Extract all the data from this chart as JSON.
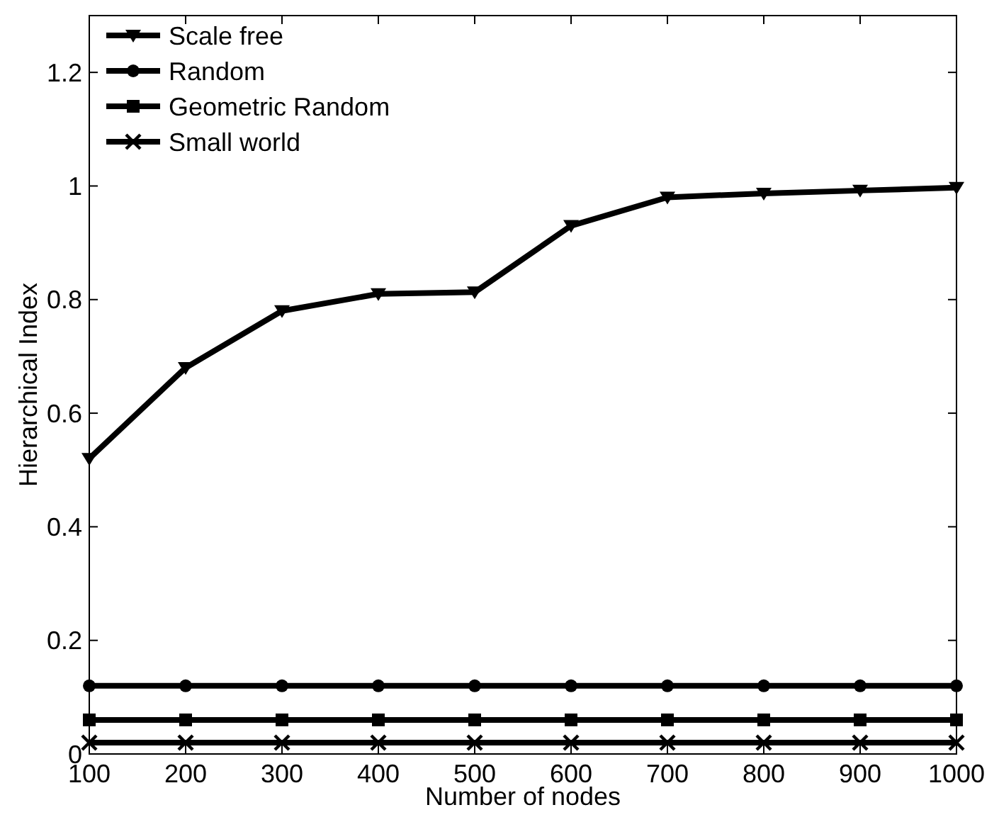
{
  "chart_data": {
    "type": "line",
    "xlabel": "Number of nodes",
    "ylabel": "Hierarchical Index",
    "x": [
      100,
      200,
      300,
      400,
      500,
      600,
      700,
      800,
      900,
      1000
    ],
    "xlim": [
      100,
      1000
    ],
    "xticks": [
      100,
      200,
      300,
      400,
      500,
      600,
      700,
      800,
      900,
      1000
    ],
    "ylim": [
      0,
      1.3
    ],
    "yticks": [
      0,
      0.2,
      0.4,
      0.6,
      0.8,
      1,
      1.2
    ],
    "grid": false,
    "legend": "top left",
    "line_style": "solid",
    "series": [
      {
        "name": "Scale free",
        "color": "#000000",
        "marker": "triangle",
        "values": [
          0.52,
          0.68,
          0.78,
          0.81,
          0.813,
          0.93,
          0.98,
          0.987,
          0.992,
          0.997
        ]
      },
      {
        "name": "Random",
        "color": "#000000",
        "marker": "circle",
        "values": [
          0.12,
          0.12,
          0.12,
          0.12,
          0.12,
          0.12,
          0.12,
          0.12,
          0.12,
          0.12
        ]
      },
      {
        "name": "Geometric Random",
        "color": "#000000",
        "marker": "square",
        "values": [
          0.06,
          0.06,
          0.06,
          0.06,
          0.06,
          0.06,
          0.06,
          0.06,
          0.06,
          0.06
        ]
      },
      {
        "name": "Small world",
        "color": "#000000",
        "marker": "cross",
        "values": [
          0.02,
          0.02,
          0.02,
          0.02,
          0.02,
          0.02,
          0.02,
          0.02,
          0.02,
          0.02
        ]
      }
    ]
  }
}
